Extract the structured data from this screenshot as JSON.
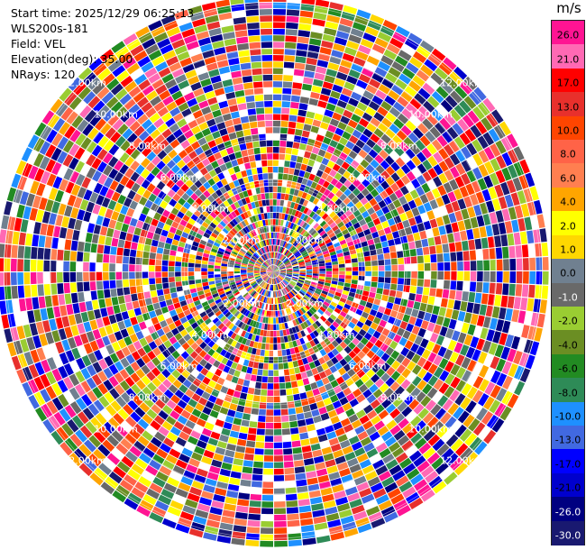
{
  "header": {
    "start_time": "Start time: 2025/12/29 06:25:13",
    "instrument": "WLS200s-181",
    "field": "Field: VEL",
    "elevation": "Elevation(deg): 35.00",
    "nrays": "NRays: 120"
  },
  "colorbar": {
    "unit": "m/s",
    "entries": [
      {
        "label": "26.0",
        "color": "#ff1493",
        "text": "#000000"
      },
      {
        "label": "21.0",
        "color": "#ff69b4",
        "text": "#000000"
      },
      {
        "label": "17.0",
        "color": "#ff0000",
        "text": "#000000"
      },
      {
        "label": "13.0",
        "color": "#e8302c",
        "text": "#000000"
      },
      {
        "label": "10.0",
        "color": "#ff4500",
        "text": "#000000"
      },
      {
        "label": "8.0",
        "color": "#ff6347",
        "text": "#000000"
      },
      {
        "label": "6.0",
        "color": "#ff7f50",
        "text": "#000000"
      },
      {
        "label": "4.0",
        "color": "#ffa500",
        "text": "#000000"
      },
      {
        "label": "2.0",
        "color": "#ffff00",
        "text": "#000000"
      },
      {
        "label": "1.0",
        "color": "#ffd700",
        "text": "#000000"
      },
      {
        "label": "0.0",
        "color": "#708090",
        "text": "#000000"
      },
      {
        "label": "-1.0",
        "color": "#696969",
        "text": "#ffffff"
      },
      {
        "label": "-2.0",
        "color": "#9acd32",
        "text": "#000000"
      },
      {
        "label": "-4.0",
        "color": "#6b8e23",
        "text": "#000000"
      },
      {
        "label": "-6.0",
        "color": "#228b22",
        "text": "#000000"
      },
      {
        "label": "-8.0",
        "color": "#2e8b57",
        "text": "#000000"
      },
      {
        "label": "-10.0",
        "color": "#1e90ff",
        "text": "#000000"
      },
      {
        "label": "-13.0",
        "color": "#4169e1",
        "text": "#000000"
      },
      {
        "label": "-17.0",
        "color": "#0000ff",
        "text": "#000000"
      },
      {
        "label": "-21.0",
        "color": "#0000cd",
        "text": "#000000"
      },
      {
        "label": "-26.0",
        "color": "#000080",
        "text": "#ffffff"
      },
      {
        "label": "-30.0",
        "color": "#191970",
        "text": "#ffffff"
      }
    ]
  },
  "chart_data": {
    "type": "heatmap",
    "projection": "polar-ppi",
    "field": "VEL",
    "nrays": 120,
    "elevation_deg": 35.0,
    "range_ring_labels": [
      "2.00km",
      "4.00km",
      "6.00km",
      "8.00km",
      "10.00km",
      "12.00km"
    ],
    "ring_values_km": [
      2,
      4,
      6,
      8,
      10,
      12
    ],
    "max_range_km": 12.4,
    "range_gates": 42,
    "color_levels": [
      26.0,
      21.0,
      17.0,
      13.0,
      10.0,
      8.0,
      6.0,
      4.0,
      2.0,
      1.0,
      0.0,
      -1.0,
      -2.0,
      -4.0,
      -6.0,
      -8.0,
      -10.0,
      -13.0,
      -17.0,
      -21.0,
      -26.0,
      -30.0
    ],
    "vmin": -30.0,
    "vmax": 30.0
  }
}
